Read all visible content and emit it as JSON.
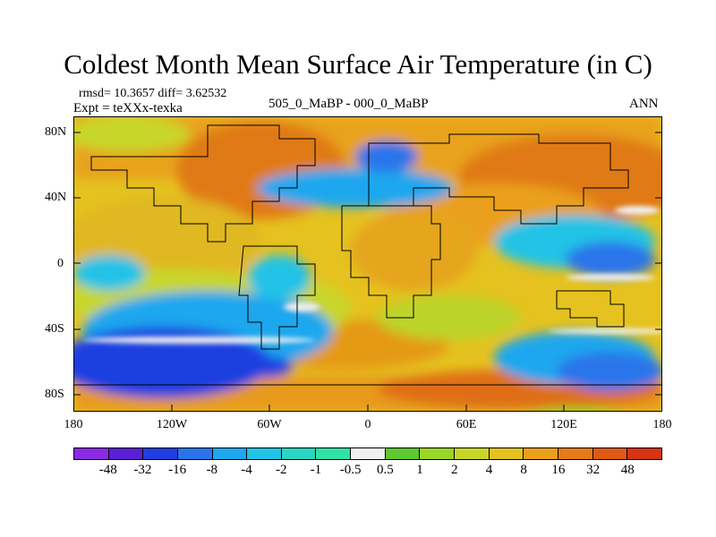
{
  "title": "Coldest Month Mean Surface Air Temperature (in C)",
  "stats": {
    "rmsd_text": "rmsd= 10.3657 diff= 3.62532"
  },
  "expt_text": "Expt = teXXx-texka",
  "subtitle_center": "505_0_MaBP - 000_0_MaBP",
  "subtitle_right": "ANN",
  "map": {
    "lat_ticks": [
      "80N",
      "40N",
      "0",
      "40S",
      "80S"
    ],
    "lon_ticks": [
      "180",
      "120W",
      "60W",
      "0",
      "60E",
      "120E",
      "180"
    ]
  },
  "colorbar": {
    "colors": [
      "#8a2be2",
      "#5a1fd6",
      "#1f3fe0",
      "#2a74ea",
      "#1ea7ee",
      "#22c3e6",
      "#2ad6c2",
      "#30e2a6",
      "#f0f0f0",
      "#5ec82f",
      "#9ad62a",
      "#c8d62a",
      "#e5c21f",
      "#eaa01a",
      "#e77b17",
      "#df5a14",
      "#d63412"
    ],
    "labels": [
      "-48",
      "-32",
      "-16",
      "-8",
      "-4",
      "-2",
      "-1",
      "-0.5",
      "0.5",
      "1",
      "2",
      "4",
      "8",
      "16",
      "32",
      "48"
    ]
  }
}
